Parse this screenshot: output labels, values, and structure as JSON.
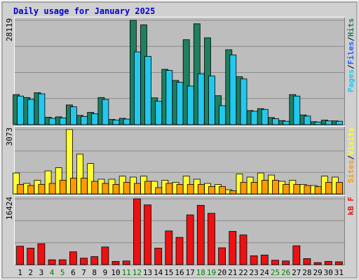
{
  "chart_data": {
    "type": "bar",
    "title": "Daily usage for January 2025",
    "colors": {
      "title": "#0000cc",
      "background": "#bdbdbd",
      "frame": "#d8d8d8",
      "hits": "#1f7f5f",
      "files": "#22c8ee",
      "pages": "#22c8ee",
      "sites": "#ffff33",
      "visits": "#ff9900",
      "kbytes": "#ee1111",
      "weekend_label": "#008000",
      "weekday_label": "#000000"
    },
    "categories": [
      "1",
      "2",
      "3",
      "4",
      "5",
      "6",
      "7",
      "8",
      "9",
      "10",
      "11",
      "12",
      "13",
      "14",
      "15",
      "16",
      "17",
      "18",
      "19",
      "20",
      "21",
      "22",
      "23",
      "24",
      "25",
      "26",
      "27",
      "28",
      "29",
      "30",
      "31"
    ],
    "weekend_days": [
      "4",
      "5",
      "11",
      "12",
      "18",
      "19",
      "25",
      "26"
    ],
    "panels": [
      {
        "id": "hits-files-pages",
        "max_label": "28119",
        "ymax": 28119,
        "legend": [
          {
            "text": "Pages",
            "color": "#22c8ee"
          },
          {
            "text": "/",
            "color": "#000000"
          },
          {
            "text": "Files",
            "color": "#2060ff"
          },
          {
            "text": "/",
            "color": "#000000"
          },
          {
            "text": "Hits",
            "color": "#1f7f5f"
          }
        ],
        "series": [
          {
            "name": "Hits",
            "color": "#1f7f5f",
            "values": [
              8100,
              7300,
              8600,
              2000,
              2100,
              5300,
              2500,
              3300,
              7300,
              1400,
              1700,
              28119,
              26900,
              7200,
              14900,
              11900,
              22900,
              27200,
              23400,
              7800,
              20200,
              12900,
              3800,
              4300,
              1900,
              1100,
              8100,
              2600,
              800,
              1200,
              1000
            ]
          },
          {
            "name": "Files",
            "color": "#22c8ee",
            "values": [
              7700,
              6800,
              8300,
              1700,
              1800,
              4800,
              2200,
              2900,
              6800,
              1200,
              1500,
              19600,
              18400,
              6300,
              14600,
              11400,
              10400,
              13700,
              13100,
              5100,
              18800,
              12300,
              3600,
              4100,
              1600,
              900,
              7700,
              2300,
              700,
              1000,
              900
            ]
          }
        ]
      },
      {
        "id": "sites-visits",
        "max_label": "3073",
        "ymax": 3073,
        "legend": [
          {
            "text": "Sites",
            "color": "#ff9900"
          },
          {
            "text": "/",
            "color": "#000000"
          },
          {
            "text": "Visits",
            "color": "#ffff33"
          }
        ],
        "series": [
          {
            "name": "Visits",
            "color": "#ffff33",
            "values": [
              1000,
              500,
              650,
              1100,
              1250,
              3073,
              1900,
              1450,
              700,
              700,
              850,
              800,
              850,
              600,
              650,
              550,
              850,
              700,
              500,
              450,
              200,
              950,
              800,
              1000,
              900,
              600,
              650,
              450,
              400,
              850,
              800
            ]
          },
          {
            "name": "Sites",
            "color": "#ff9900",
            "values": [
              450,
              400,
              450,
              500,
              650,
              750,
              750,
              600,
              500,
              450,
              550,
              500,
              600,
              300,
              500,
              450,
              450,
              450,
              350,
              350,
              150,
              550,
              550,
              650,
              650,
              450,
              450,
              400,
              350,
              550,
              550
            ]
          }
        ]
      },
      {
        "id": "kbytes",
        "max_label": "16424",
        "ymax": 16424,
        "legend": [
          {
            "text": "kB F",
            "color": "#ee1111"
          }
        ],
        "series": [
          {
            "name": "kB F",
            "color": "#ee1111",
            "values": [
              4600,
              4100,
              5200,
              1200,
              1200,
              3200,
              1600,
              2000,
              4400,
              800,
              900,
              16424,
              14900,
              4100,
              8400,
              6800,
              12400,
              14800,
              12800,
              4200,
              8300,
              7400,
              2200,
              2400,
              1100,
              900,
              4700,
              1500,
              500,
              800,
              700
            ]
          }
        ]
      }
    ]
  }
}
